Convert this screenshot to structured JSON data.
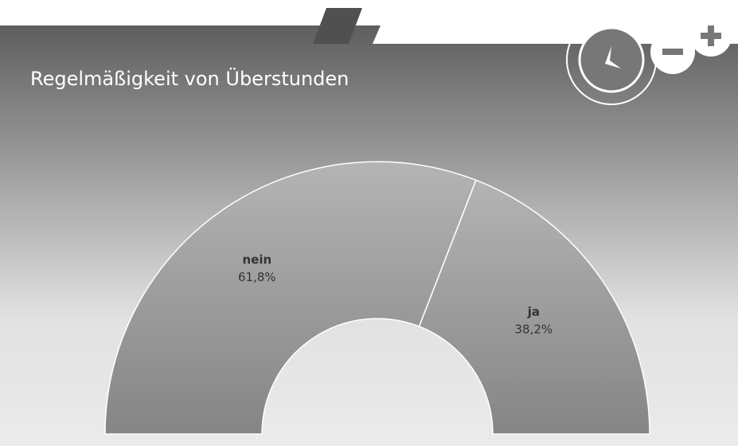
{
  "chart_data": {
    "type": "pie",
    "title": "Regelmäßigkeit von Überstunden",
    "categories": [
      "nein",
      "ja"
    ],
    "values": [
      61.8,
      38.2
    ],
    "value_labels": [
      "61,8%",
      "38,2%"
    ],
    "colors": [
      "#8c8c8c",
      "#8c8c8c"
    ]
  }
}
